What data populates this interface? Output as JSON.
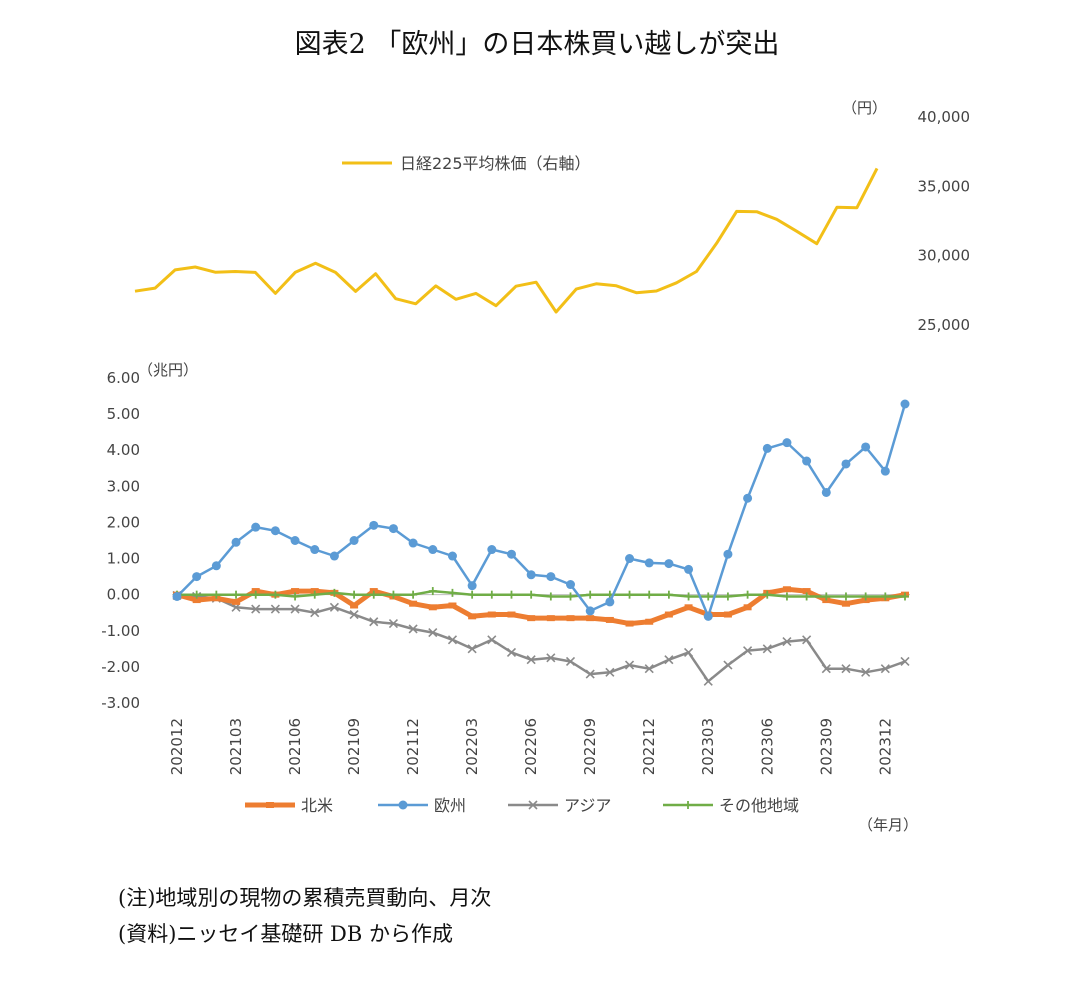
{
  "title": "図表2 「欧州」の日本株買い越しが突出",
  "notes": {
    "note": "(注)地域別の現物の累積売買動向、月次",
    "source": "(資料)ニッセイ基礎研 DB から作成"
  },
  "chart_data": [
    {
      "type": "line",
      "title": "日経225平均株価",
      "legend_label": "日経225平均株価（右軸）",
      "axis_side": "right",
      "unit_label": "（円）",
      "ylim": [
        25000,
        40000
      ],
      "yticks": [
        25000,
        30000,
        35000,
        40000
      ],
      "ytick_labels": [
        "25,000",
        "30,000",
        "35,000",
        "40,000"
      ],
      "color": "#f2bf17",
      "x": [
        "202012",
        "202101",
        "202102",
        "202103",
        "202104",
        "202105",
        "202106",
        "202107",
        "202108",
        "202109",
        "202110",
        "202111",
        "202112",
        "202201",
        "202202",
        "202203",
        "202204",
        "202205",
        "202206",
        "202207",
        "202208",
        "202209",
        "202210",
        "202211",
        "202212",
        "202301",
        "202302",
        "202303",
        "202304",
        "202305",
        "202306",
        "202307",
        "202308",
        "202309",
        "202310",
        "202311",
        "202312",
        "202401"
      ],
      "values": [
        27440,
        27660,
        28970,
        29180,
        28810,
        28860,
        28790,
        27280,
        28810,
        29450,
        28790,
        27420,
        28700,
        26900,
        26530,
        27820,
        26850,
        27280,
        26390,
        27800,
        28090,
        25940,
        27590,
        27970,
        27830,
        27330,
        27450,
        28040,
        28860,
        30890,
        33190,
        33170,
        32620,
        31760,
        30860,
        33490,
        33460,
        36290
      ]
    },
    {
      "type": "line",
      "unit_label": "（兆円）",
      "ylim": [
        -3.0,
        6.0
      ],
      "yticks": [
        -3,
        -2,
        -1,
        0,
        1,
        2,
        3,
        4,
        5,
        6
      ],
      "ytick_labels": [
        "-3.00",
        "-2.00",
        "-1.00",
        "0.00",
        "1.00",
        "2.00",
        "3.00",
        "4.00",
        "5.00",
        "6.00"
      ],
      "x_tick_labels": [
        "202012",
        "202103",
        "202106",
        "202109",
        "202112",
        "202203",
        "202206",
        "202209",
        "202212",
        "202303",
        "202306",
        "202309",
        "202312"
      ],
      "x_label": "（年月）",
      "categories": [
        "202012",
        "202101",
        "202102",
        "202103",
        "202104",
        "202105",
        "202106",
        "202107",
        "202108",
        "202109",
        "202110",
        "202111",
        "202112",
        "202201",
        "202202",
        "202203",
        "202204",
        "202205",
        "202206",
        "202207",
        "202208",
        "202209",
        "202210",
        "202211",
        "202212",
        "202301",
        "202302",
        "202303",
        "202304",
        "202305",
        "202306",
        "202307",
        "202308",
        "202309",
        "202310",
        "202311",
        "202312",
        "202401"
      ],
      "series": [
        {
          "name": "北米",
          "color": "#ed7d31",
          "marker": "dash",
          "values": [
            0.0,
            -0.15,
            -0.1,
            -0.2,
            0.1,
            0.0,
            0.1,
            0.1,
            0.05,
            -0.3,
            0.1,
            -0.05,
            -0.25,
            -0.35,
            -0.3,
            -0.6,
            -0.55,
            -0.55,
            -0.65,
            -0.65,
            -0.65,
            -0.65,
            -0.7,
            -0.8,
            -0.75,
            -0.55,
            -0.35,
            -0.55,
            -0.55,
            -0.35,
            0.05,
            0.15,
            0.1,
            -0.15,
            -0.25,
            -0.15,
            -0.1,
            0.0
          ]
        },
        {
          "name": "欧州",
          "color": "#5b9bd5",
          "marker": "circle",
          "values": [
            -0.05,
            0.5,
            0.8,
            1.45,
            1.87,
            1.77,
            1.5,
            1.25,
            1.07,
            1.5,
            1.92,
            1.83,
            1.43,
            1.25,
            1.07,
            0.25,
            1.25,
            1.12,
            0.55,
            0.5,
            0.28,
            -0.45,
            -0.2,
            1.0,
            0.88,
            0.86,
            0.7,
            -0.6,
            1.12,
            2.67,
            4.05,
            4.21,
            3.7,
            2.83,
            3.62,
            4.09,
            3.42,
            5.28
          ]
        },
        {
          "name": "アジア",
          "color": "#8a8a8a",
          "marker": "x",
          "values": [
            -0.02,
            -0.05,
            -0.1,
            -0.35,
            -0.4,
            -0.4,
            -0.4,
            -0.5,
            -0.35,
            -0.55,
            -0.75,
            -0.8,
            -0.95,
            -1.05,
            -1.25,
            -1.5,
            -1.25,
            -1.6,
            -1.8,
            -1.75,
            -1.85,
            -2.2,
            -2.15,
            -1.95,
            -2.05,
            -1.8,
            -1.6,
            -2.4,
            -1.95,
            -1.55,
            -1.5,
            -1.3,
            -1.25,
            -2.05,
            -2.05,
            -2.15,
            -2.05,
            -1.85
          ]
        },
        {
          "name": "その他地域",
          "color": "#70ad47",
          "marker": "plus",
          "values": [
            0.0,
            0.0,
            0.0,
            0.0,
            0.0,
            0.0,
            -0.05,
            0.0,
            0.05,
            0.0,
            0.0,
            0.0,
            0.0,
            0.1,
            0.05,
            0.0,
            0.0,
            0.0,
            0.0,
            -0.05,
            -0.05,
            0.0,
            0.0,
            0.0,
            0.0,
            0.0,
            -0.05,
            -0.05,
            -0.05,
            0.0,
            0.0,
            -0.05,
            -0.05,
            -0.05,
            -0.05,
            -0.05,
            -0.05,
            -0.05
          ]
        }
      ]
    }
  ]
}
